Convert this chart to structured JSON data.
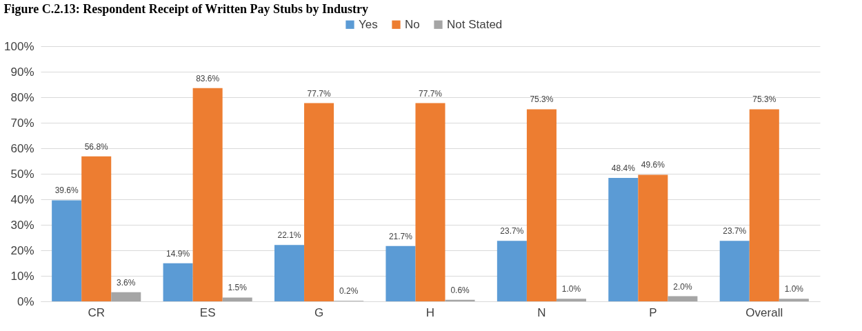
{
  "chart_data": {
    "type": "bar",
    "title": "Figure C.2.13: Respondent Receipt of Written Pay Stubs by Industry",
    "categories": [
      "CR",
      "ES",
      "G",
      "H",
      "N",
      "P",
      "Overall"
    ],
    "series": [
      {
        "name": "Yes",
        "color": "#5b9bd5",
        "values": [
          39.6,
          14.9,
          22.1,
          21.7,
          23.7,
          48.4,
          23.7
        ],
        "value_labels": [
          "39.6%",
          "14.9%",
          "22.1%",
          "21.7%",
          "23.7%",
          "48.4%",
          "23.7%"
        ]
      },
      {
        "name": "No",
        "color": "#ed7d31",
        "values": [
          56.8,
          83.6,
          77.7,
          77.7,
          75.3,
          49.6,
          75.3
        ],
        "value_labels": [
          "56.8%",
          "83.6%",
          "77.7%",
          "77.7%",
          "75.3%",
          "49.6%",
          "75.3%"
        ]
      },
      {
        "name": "Not Stated",
        "color": "#a5a5a5",
        "values": [
          3.6,
          1.5,
          0.2,
          0.6,
          1.0,
          2.0,
          1.0
        ],
        "value_labels": [
          "3.6%",
          "1.5%",
          "0.2%",
          "0.6%",
          "1.0%",
          "2.0%",
          "1.0%"
        ]
      }
    ],
    "ylim": [
      0,
      100
    ],
    "yticks": [
      {
        "value": 0,
        "label": "0%"
      },
      {
        "value": 10,
        "label": "10%"
      },
      {
        "value": 20,
        "label": "20%"
      },
      {
        "value": 30,
        "label": "30%"
      },
      {
        "value": 40,
        "label": "40%"
      },
      {
        "value": 50,
        "label": "50%"
      },
      {
        "value": 60,
        "label": "60%"
      },
      {
        "value": 70,
        "label": "70%"
      },
      {
        "value": 80,
        "label": "80%"
      },
      {
        "value": 90,
        "label": "90%"
      },
      {
        "value": 100,
        "label": "100%"
      }
    ],
    "grid": "y",
    "legend": "top"
  }
}
